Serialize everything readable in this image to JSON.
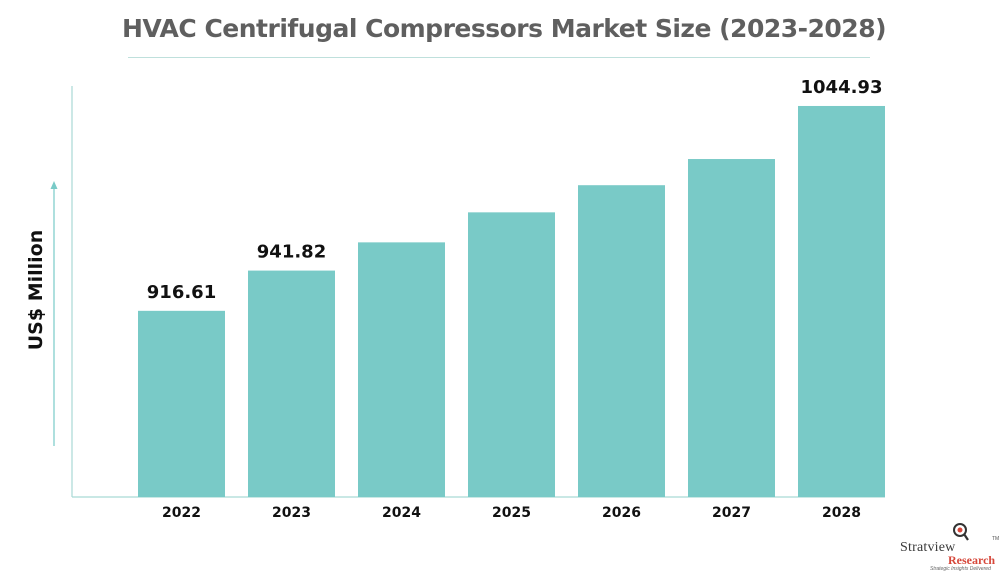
{
  "chart_data": {
    "type": "bar",
    "title": "HVAC Centrifugal Compressors Market Size (2023-2028)",
    "ylabel": "US$ Million",
    "xlabel": "",
    "categories": [
      "2022",
      "2023",
      "2024",
      "2025",
      "2026",
      "2027",
      "2028"
    ],
    "values": [
      916.61,
      941.82,
      959.5,
      978.3,
      995.3,
      1011.7,
      1044.93
    ],
    "data_labels": [
      "916.61",
      "941.82",
      "",
      "",
      "",
      "",
      "1044.93"
    ],
    "ylim": [
      800,
      1085
    ],
    "grid": false,
    "legend": "none",
    "bar_color": "#79cac7"
  },
  "logo": {
    "name": "Stratview",
    "tm": "TM",
    "sub": "Research",
    "tagline": "Strategic Insights Delivered"
  },
  "colors": {
    "bar": "#79cac7",
    "axis": "#a9d9d5",
    "title": "#5f5f5f"
  }
}
